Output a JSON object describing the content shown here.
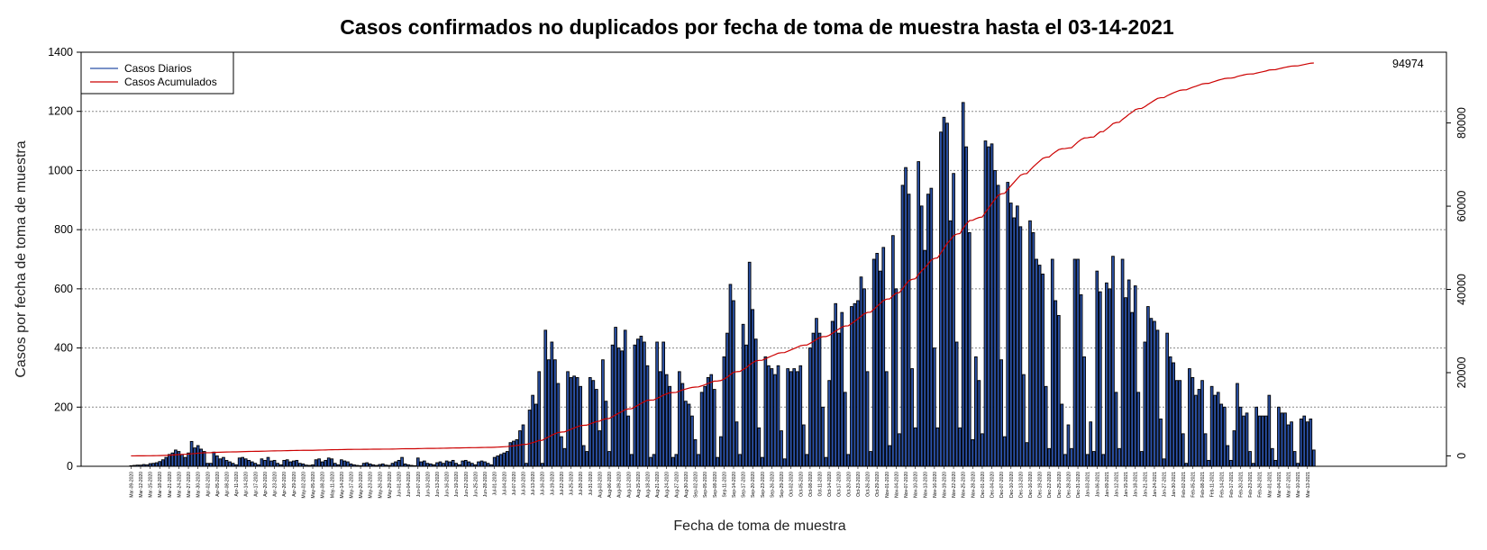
{
  "chart_data": {
    "type": "bar",
    "title": "Casos confirmados no duplicados por fecha de toma de muestra hasta el 03-14-2021",
    "xlabel": "Fecha de toma de muestra",
    "ylabel": "Casos por fecha de toma de muestra",
    "ylim": [
      0,
      1400
    ],
    "y_ticks": [
      0,
      200,
      400,
      600,
      800,
      1000,
      1200,
      1400
    ],
    "y2lim": [
      -2500,
      97000
    ],
    "y2_ticks": [
      0,
      20000,
      40000,
      60000,
      80000
    ],
    "grid": true,
    "legend_position": "top-left",
    "total_label": "94974",
    "x_tick_labels": [
      "Mar-09-2020",
      "Mar-12-2020",
      "Mar-15-2020",
      "Mar-18-2020",
      "Mar-21-2020",
      "Mar-24-2020",
      "Mar-27-2020",
      "Mar-30-2020",
      "Apr-02-2020",
      "Apr-05-2020",
      "Apr-08-2020",
      "Apr-11-2020",
      "Apr-14-2020",
      "Apr-17-2020",
      "Apr-20-2020",
      "Apr-23-2020",
      "Apr-26-2020",
      "Apr-29-2020",
      "May-02-2020",
      "May-05-2020",
      "May-08-2020",
      "May-11-2020",
      "May-14-2020",
      "May-17-2020",
      "May-20-2020",
      "May-23-2020",
      "May-26-2020",
      "May-29-2020",
      "Jun-01-2020",
      "Jun-04-2020",
      "Jun-07-2020",
      "Jun-10-2020",
      "Jun-13-2020",
      "Jun-16-2020",
      "Jun-19-2020",
      "Jun-22-2020",
      "Jun-25-2020",
      "Jun-28-2020",
      "Jul-01-2020",
      "Jul-04-2020",
      "Jul-07-2020",
      "Jul-10-2020",
      "Jul-13-2020",
      "Jul-16-2020",
      "Jul-19-2020",
      "Jul-22-2020",
      "Jul-25-2020",
      "Jul-28-2020",
      "Jul-31-2020",
      "Aug-03-2020",
      "Aug-06-2020",
      "Aug-09-2020",
      "Aug-12-2020",
      "Aug-15-2020",
      "Aug-18-2020",
      "Aug-21-2020",
      "Aug-24-2020",
      "Aug-27-2020",
      "Aug-30-2020",
      "Sep-02-2020",
      "Sep-05-2020",
      "Sep-08-2020",
      "Sep-11-2020",
      "Sep-14-2020",
      "Sep-17-2020",
      "Sep-20-2020",
      "Sep-23-2020",
      "Sep-26-2020",
      "Sep-29-2020",
      "Oct-02-2020",
      "Oct-05-2020",
      "Oct-08-2020",
      "Oct-11-2020",
      "Oct-14-2020",
      "Oct-17-2020",
      "Oct-20-2020",
      "Oct-23-2020",
      "Oct-26-2020",
      "Oct-29-2020",
      "Nov-01-2020",
      "Nov-04-2020",
      "Nov-07-2020",
      "Nov-10-2020",
      "Nov-13-2020",
      "Nov-16-2020",
      "Nov-19-2020",
      "Nov-22-2020",
      "Nov-25-2020",
      "Nov-28-2020",
      "Dec-01-2020",
      "Dec-04-2020",
      "Dec-07-2020",
      "Dec-10-2020",
      "Dec-13-2020",
      "Dec-16-2020",
      "Dec-19-2020",
      "Dec-22-2020",
      "Dec-25-2020",
      "Dec-28-2020",
      "Dec-31-2020",
      "Jan-03-2021",
      "Jan-06-2021",
      "Jan-09-2021",
      "Jan-12-2021",
      "Jan-15-2021",
      "Jan-18-2021",
      "Jan-21-2021",
      "Jan-24-2021",
      "Jan-27-2021",
      "Jan-30-2021",
      "Feb-02-2021",
      "Feb-05-2021",
      "Feb-08-2021",
      "Feb-11-2021",
      "Feb-14-2021",
      "Feb-17-2021",
      "Feb-20-2021",
      "Feb-23-2021",
      "Feb-26-2021",
      "Mar-01-2021",
      "Mar-04-2021",
      "Mar-07-2021",
      "Mar-10-2021",
      "Mar-13-2021"
    ],
    "series": [
      {
        "name": "Casos Diarios",
        "type": "bar",
        "color": "#2b52a8",
        "values": [
          2,
          3,
          4,
          4,
          6,
          5,
          9,
          10,
          12,
          16,
          22,
          30,
          40,
          45,
          55,
          50,
          40,
          30,
          45,
          84,
          62,
          70,
          58,
          50,
          10,
          10,
          48,
          35,
          25,
          30,
          20,
          15,
          10,
          5,
          28,
          30,
          25,
          20,
          15,
          10,
          5,
          25,
          20,
          30,
          18,
          20,
          10,
          5,
          20,
          22,
          15,
          18,
          20,
          10,
          8,
          4,
          3,
          5,
          22,
          25,
          15,
          20,
          28,
          25,
          10,
          5,
          22,
          18,
          15,
          8,
          5,
          3,
          2,
          10,
          12,
          8,
          5,
          3,
          6,
          8,
          4,
          3,
          10,
          15,
          20,
          30,
          8,
          5,
          3,
          2,
          28,
          15,
          18,
          10,
          8,
          5,
          12,
          15,
          10,
          18,
          15,
          20,
          10,
          5,
          18,
          20,
          15,
          10,
          5,
          15,
          18,
          15,
          10,
          5,
          30,
          35,
          40,
          45,
          50,
          80,
          85,
          90,
          120,
          140,
          10,
          190,
          240,
          210,
          320,
          10,
          460,
          360,
          420,
          360,
          280,
          100,
          60,
          320,
          300,
          305,
          300,
          270,
          70,
          50,
          300,
          290,
          260,
          120,
          360,
          220,
          50,
          410,
          470,
          400,
          390,
          460,
          170,
          40,
          410,
          430,
          440,
          420,
          340,
          30,
          40,
          420,
          320,
          420,
          310,
          270,
          30,
          40,
          320,
          280,
          220,
          210,
          170,
          90,
          40,
          250,
          270,
          300,
          310,
          260,
          30,
          100,
          370,
          450,
          615,
          560,
          150,
          40,
          480,
          410,
          690,
          530,
          430,
          130,
          30,
          370,
          340,
          330,
          310,
          340,
          120,
          25,
          330,
          320,
          330,
          320,
          340,
          140,
          40,
          400,
          450,
          500,
          450,
          200,
          30,
          290,
          490,
          550,
          450,
          520,
          250,
          40,
          540,
          550,
          560,
          640,
          600,
          320,
          50,
          700,
          720,
          660,
          740,
          320,
          70,
          780,
          600,
          110,
          950,
          1010,
          920,
          330,
          130,
          1030,
          880,
          730,
          920,
          940,
          400,
          130,
          1130,
          1180,
          1160,
          830,
          990,
          420,
          130,
          1230,
          1080,
          790,
          90,
          370,
          290,
          110,
          1100,
          1080,
          1090,
          1000,
          950,
          360,
          100,
          960,
          890,
          840,
          880,
          810,
          310,
          80,
          830,
          790,
          700,
          680,
          650,
          270,
          60,
          700,
          560,
          510,
          210,
          40,
          140,
          60,
          700,
          700,
          580,
          370,
          40,
          150,
          50,
          660,
          590,
          40,
          620,
          600,
          710,
          250,
          60,
          700,
          570,
          630,
          520,
          610,
          250,
          50,
          420,
          540,
          500,
          490,
          460,
          160,
          25,
          450,
          370,
          350,
          290,
          290,
          110,
          10,
          330,
          300,
          240,
          260,
          290,
          110,
          20,
          270,
          240,
          250,
          210,
          200,
          70,
          20,
          120,
          280,
          200,
          170,
          180,
          50,
          10,
          200,
          170,
          170,
          170,
          240,
          60,
          20,
          200,
          180,
          180,
          140,
          150,
          50,
          10,
          160,
          170,
          150,
          160,
          55
        ]
      },
      {
        "name": "Casos Acumulados",
        "type": "line",
        "color": "#cc0000"
      }
    ]
  }
}
